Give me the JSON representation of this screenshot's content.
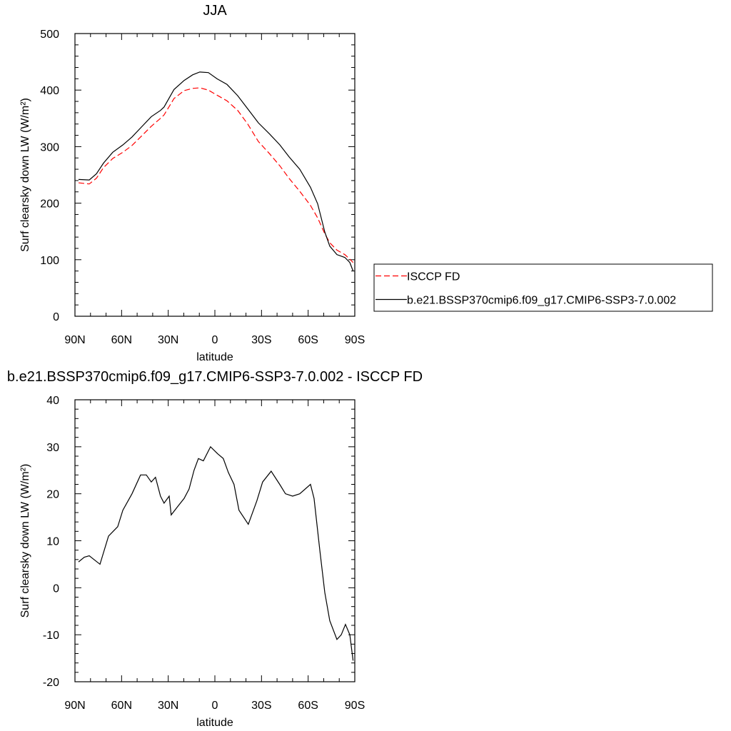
{
  "chart_data": [
    {
      "type": "line",
      "title": "JJA",
      "xlabel": "latitude",
      "ylabel": "Surf clearsky down LW (W/m²)",
      "x": [
        87.7,
        80.8,
        76.2,
        71.6,
        65.7,
        59.2,
        53.3,
        47.8,
        40.9,
        35.0,
        32.7,
        26.3,
        19.8,
        14.3,
        9.7,
        4.2,
        -1.4,
        -7.8,
        -14.7,
        -21.1,
        -28.0,
        -35.3,
        -41.8,
        -47.7,
        -54.6,
        -61.5,
        -66.1,
        -70.7,
        -73.9,
        -78.5,
        -83.6,
        -86.8,
        -88.9
      ],
      "series": [
        {
          "name": "ISCCP FD",
          "color": "#ff0000",
          "line_style": "dashed",
          "values": [
            236,
            234,
            244,
            263,
            279,
            290,
            302,
            317,
            336,
            350,
            356,
            385,
            399,
            403,
            404,
            400,
            391,
            381,
            364,
            340,
            309,
            287,
            266,
            244,
            221,
            196,
            174,
            146,
            130,
            117,
            109,
            101,
            95
          ]
        },
        {
          "name": "b.e21.BSSP370cmip6.f09_g17.CMIP6-SSP3-7.0.002",
          "color": "#000000",
          "line_style": "solid",
          "values": [
            242,
            241,
            252,
            271,
            290,
            303,
            317,
            333,
            353,
            364,
            370,
            401,
            417,
            427,
            432,
            431,
            420,
            410,
            390,
            367,
            342,
            322,
            303,
            282,
            260,
            228,
            199,
            149,
            124,
            109,
            104,
            95,
            80
          ]
        }
      ],
      "xlim": [
        90,
        -90
      ],
      "xticks": [
        {
          "value": 90,
          "label": "90N"
        },
        {
          "value": 60,
          "label": "60N"
        },
        {
          "value": 30,
          "label": "30N"
        },
        0,
        {
          "value": -30,
          "label": "30S"
        },
        {
          "value": -60,
          "label": "60S"
        },
        {
          "value": -90,
          "label": "90S"
        }
      ],
      "ylim": [
        0,
        500
      ],
      "yticks": [
        0,
        100,
        200,
        300,
        400,
        500
      ],
      "legend": "right",
      "grid": false
    },
    {
      "type": "line",
      "title": "b.e21.BSSP370cmip6.f09_g17.CMIP6-SSP3-7.0.002 - ISCCP FD",
      "xlabel": "latitude",
      "ylabel": "Surf clearsky down LW (W/m²)",
      "x": [
        87.7,
        84.0,
        80.8,
        73.9,
        68.4,
        62.5,
        59.2,
        53.3,
        47.8,
        44.1,
        40.9,
        38.2,
        35.0,
        32.7,
        29.4,
        28.1,
        23.4,
        19.8,
        16.6,
        13.4,
        10.6,
        7.4,
        2.8,
        -1.8,
        -5.4,
        -8.7,
        -12.3,
        -15.5,
        -21.5,
        -27.0,
        -30.7,
        -36.2,
        -41.7,
        -45.4,
        -50.0,
        -54.6,
        -61.5,
        -63.8,
        -67.5,
        -70.7,
        -73.9,
        -78.5,
        -81.3,
        -84.0,
        -86.8,
        -88.9
      ],
      "series": [
        {
          "color": "#000000",
          "line_style": "solid",
          "values": [
            5.5,
            6.5,
            6.8,
            5,
            11,
            13,
            16.5,
            20,
            24,
            24,
            22.5,
            23.5,
            19.5,
            18,
            19.5,
            15.5,
            17.5,
            19,
            21,
            25,
            27.5,
            27,
            30,
            28.5,
            27.5,
            24.5,
            22,
            16.5,
            13.5,
            18.5,
            22.5,
            24.8,
            22,
            20,
            19.5,
            20,
            22,
            19,
            8,
            -1,
            -7,
            -11,
            -10,
            -7.8,
            -10,
            -15.5
          ]
        }
      ],
      "xlim": [
        90,
        -90
      ],
      "xticks": [
        {
          "value": 90,
          "label": "90N"
        },
        {
          "value": 60,
          "label": "60N"
        },
        {
          "value": 30,
          "label": "30N"
        },
        0,
        {
          "value": -30,
          "label": "30S"
        },
        {
          "value": -60,
          "label": "60S"
        },
        {
          "value": -90,
          "label": "90S"
        }
      ],
      "ylim": [
        -20,
        40
      ],
      "yticks": [
        -20,
        -10,
        0,
        10,
        20,
        30,
        40
      ],
      "grid": false
    }
  ]
}
